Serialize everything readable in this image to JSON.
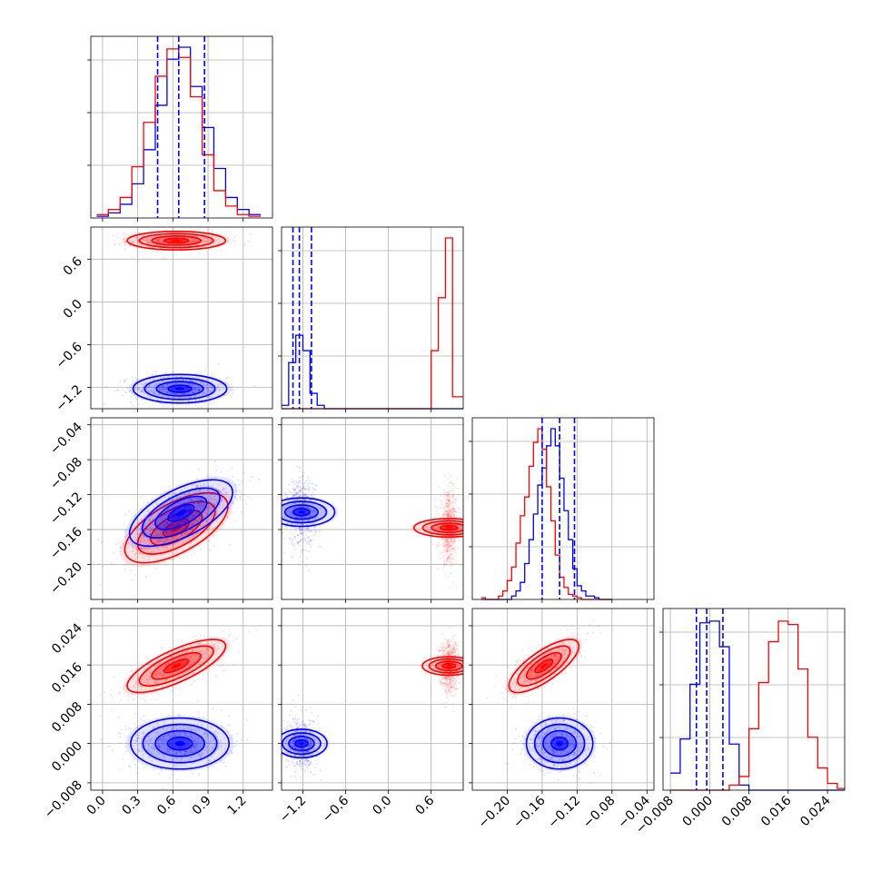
{
  "chart_data": {
    "type": "scatter",
    "kind": "corner-plot",
    "title": "",
    "grid": true,
    "legend": "none",
    "colors": {
      "dataset_a": "#ff0000",
      "dataset_b": "#0000ff"
    },
    "parameters": [
      {
        "range": [
          -0.1,
          1.45
        ],
        "ticks": [
          "0.0",
          "0.3",
          "0.6",
          "0.9",
          "1.2"
        ],
        "tick_values": [
          0.0,
          0.3,
          0.6,
          0.9,
          1.2
        ],
        "quantiles": [
          0.47,
          0.65,
          0.87
        ]
      },
      {
        "range": [
          -1.5,
          1.05
        ],
        "ticks": [
          "−1.2",
          "−0.6",
          "0.0",
          "0.6"
        ],
        "tick_values": [
          -1.2,
          -0.6,
          0.0,
          0.6
        ],
        "quantiles": [
          -1.34,
          -1.25,
          -1.08
        ]
      },
      {
        "range": [
          -0.24,
          -0.032
        ],
        "ticks": [
          "−0.20",
          "−0.16",
          "−0.12",
          "−0.08",
          "−0.04"
        ],
        "tick_values": [
          -0.2,
          -0.16,
          -0.12,
          -0.08,
          -0.04
        ],
        "quantiles": [
          -0.16,
          -0.14,
          -0.123
        ]
      },
      {
        "range": [
          -0.0095,
          0.0275
        ],
        "ticks": [
          "−0.008",
          "0.000",
          "0.008",
          "0.016",
          "0.024"
        ],
        "tick_values": [
          -0.008,
          0.0,
          0.008,
          0.016,
          0.024
        ],
        "quantiles": [
          -0.0027,
          -0.0006,
          0.0027
        ]
      }
    ],
    "histograms": [
      {
        "param": 0,
        "edges": [
          -0.05,
          0.05,
          0.15,
          0.25,
          0.35,
          0.45,
          0.55,
          0.65,
          0.75,
          0.85,
          0.95,
          1.05,
          1.15,
          1.25,
          1.35
        ],
        "blue": [
          0.01,
          0.03,
          0.08,
          0.2,
          0.4,
          0.66,
          0.93,
          1.0,
          0.77,
          0.53,
          0.29,
          0.12,
          0.05,
          0.02
        ],
        "red": [
          0.02,
          0.05,
          0.12,
          0.3,
          0.56,
          0.83,
          0.99,
          0.94,
          0.71,
          0.37,
          0.16,
          0.07,
          0.02,
          0.01
        ]
      },
      {
        "param": 1,
        "edges": [
          -1.5,
          -1.4,
          -1.3,
          -1.2,
          -1.1,
          -1.0,
          -0.9,
          -0.8,
          -0.7,
          -0.6,
          -0.5,
          -0.4,
          -0.3,
          -0.2,
          -0.1,
          0.0,
          0.1,
          0.2,
          0.3,
          0.4,
          0.5,
          0.6,
          0.7,
          0.8,
          0.9,
          1.0,
          1.05
        ],
        "blue": [
          0.02,
          0.27,
          0.43,
          0.34,
          0.09,
          0.02,
          0,
          0,
          0,
          0,
          0,
          0,
          0,
          0,
          0,
          0,
          0,
          0,
          0,
          0,
          0,
          0,
          0,
          0,
          0,
          0
        ],
        "red": [
          0,
          0,
          0,
          0,
          0,
          0,
          0,
          0,
          0,
          0,
          0,
          0,
          0,
          0,
          0,
          0,
          0,
          0,
          0,
          0,
          0,
          0.34,
          0.65,
          1.0,
          0.07,
          0.07
        ]
      },
      {
        "param": 2,
        "edges": [
          -0.23,
          -0.225,
          -0.22,
          -0.215,
          -0.21,
          -0.205,
          -0.2,
          -0.195,
          -0.19,
          -0.185,
          -0.18,
          -0.175,
          -0.17,
          -0.165,
          -0.16,
          -0.155,
          -0.15,
          -0.145,
          -0.14,
          -0.135,
          -0.13,
          -0.125,
          -0.12,
          -0.115,
          -0.11,
          -0.105,
          -0.1,
          -0.095,
          -0.09,
          -0.085,
          -0.08
        ],
        "blue": [
          0,
          0,
          0,
          0,
          0,
          0,
          0,
          0.02,
          0.05,
          0.1,
          0.21,
          0.35,
          0.5,
          0.67,
          0.77,
          0.9,
          1.0,
          0.9,
          0.71,
          0.52,
          0.35,
          0.18,
          0.08,
          0.05,
          0.02,
          0.02,
          0.01,
          0,
          0,
          0
        ],
        "red": [
          0.01,
          0,
          0,
          0,
          0.02,
          0.05,
          0.11,
          0.19,
          0.33,
          0.49,
          0.6,
          0.78,
          0.92,
          1.0,
          0.88,
          0.66,
          0.46,
          0.26,
          0.13,
          0.07,
          0.03,
          0.02,
          0.01,
          0,
          0,
          0,
          0,
          0,
          0,
          0
        ]
      },
      {
        "param": 3,
        "edges": [
          -0.008,
          -0.006,
          -0.004,
          -0.002,
          0.0,
          0.002,
          0.004,
          0.006,
          0.008,
          0.01,
          0.012,
          0.014,
          0.016,
          0.018,
          0.02,
          0.022,
          0.024,
          0.026,
          0.0275
        ],
        "blue": [
          0.1,
          0.3,
          0.62,
          0.98,
          0.99,
          0.84,
          0.27,
          0.03,
          0,
          0,
          0,
          0,
          0,
          0,
          0,
          0,
          0,
          0
        ],
        "red": [
          0,
          0,
          0,
          0,
          0,
          0,
          0.03,
          0.08,
          0.36,
          0.63,
          0.87,
          0.99,
          0.97,
          0.71,
          0.31,
          0.13,
          0.04,
          0.01
        ]
      }
    ],
    "pairs": [
      {
        "x": 0,
        "y": 1,
        "red": {
          "mean": [
            0.63,
            0.86
          ],
          "sd": [
            0.21,
            0.065
          ],
          "rho": 0.0
        },
        "blue": {
          "mean": [
            0.66,
            -1.22
          ],
          "sd": [
            0.2,
            0.1
          ],
          "rho": 0.0
        }
      },
      {
        "x": 0,
        "y": 2,
        "red": {
          "mean": [
            0.63,
            -0.158
          ],
          "sd": [
            0.22,
            0.02
          ],
          "rho": 0.62
        },
        "blue": {
          "mean": [
            0.67,
            -0.141
          ],
          "sd": [
            0.22,
            0.019
          ],
          "rho": 0.62
        }
      },
      {
        "x": 1,
        "y": 2,
        "red": {
          "mean": [
            0.85,
            -0.158
          ],
          "sd": [
            0.065,
            0.02
          ],
          "rho": 0.0
        },
        "blue": {
          "mean": [
            -1.22,
            -0.14
          ],
          "sd": [
            0.1,
            0.019
          ],
          "rho": 0.0
        }
      },
      {
        "x": 0,
        "y": 3,
        "red": {
          "mean": [
            0.63,
            0.0158
          ],
          "sd": [
            0.21,
            0.0027
          ],
          "rho": 0.75
        },
        "blue": {
          "mean": [
            0.66,
            0.0
          ],
          "sd": [
            0.21,
            0.0026
          ],
          "rho": 0.0
        }
      },
      {
        "x": 1,
        "y": 3,
        "red": {
          "mean": [
            0.85,
            0.0158
          ],
          "sd": [
            0.065,
            0.0027
          ],
          "rho": 0.0
        },
        "blue": {
          "mean": [
            -1.22,
            0.0
          ],
          "sd": [
            0.1,
            0.0026
          ],
          "rho": 0.0
        }
      },
      {
        "x": 2,
        "y": 3,
        "red": {
          "mean": [
            -0.158,
            0.0158
          ],
          "sd": [
            0.02,
            0.0027
          ],
          "rho": 0.75
        },
        "blue": {
          "mean": [
            -0.14,
            0.0
          ],
          "sd": [
            0.019,
            0.0026
          ],
          "rho": 0.0
        }
      }
    ]
  }
}
